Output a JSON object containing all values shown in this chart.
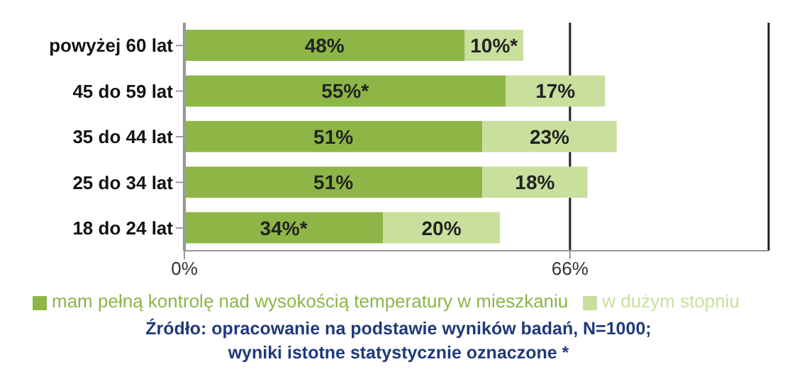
{
  "chart_data": {
    "type": "bar",
    "orientation": "horizontal",
    "stacked": true,
    "categories": [
      "powyżej 60 lat",
      "45 do 59 lat",
      "35 do 44 lat",
      "25 do 34 lat",
      "18 do 24 lat"
    ],
    "series": [
      {
        "name": "mam pełną kontrolę nad wysokością temperatury w mieszkaniu",
        "color": "#8db646",
        "values": [
          48,
          55,
          51,
          51,
          34
        ],
        "value_labels": [
          "48%",
          "55%*",
          "51%",
          "51%",
          "34%*"
        ]
      },
      {
        "name": "w dużym stopniu",
        "color": "#c9df9d",
        "values": [
          10,
          17,
          23,
          18,
          20
        ],
        "value_labels": [
          "10%*",
          "17%",
          "23%",
          "18%",
          "20%"
        ]
      }
    ],
    "xlim": [
      0,
      100
    ],
    "xticks": [
      {
        "value": 0,
        "label": "0%"
      },
      {
        "value": 66,
        "label": "66%"
      }
    ],
    "grid": "x",
    "legend": "bottom",
    "annotations": [
      "Źródło: opracowanie na podstawie wyników badań, N=1000;",
      "wyniki istotne statystycznie oznaczone *"
    ]
  }
}
